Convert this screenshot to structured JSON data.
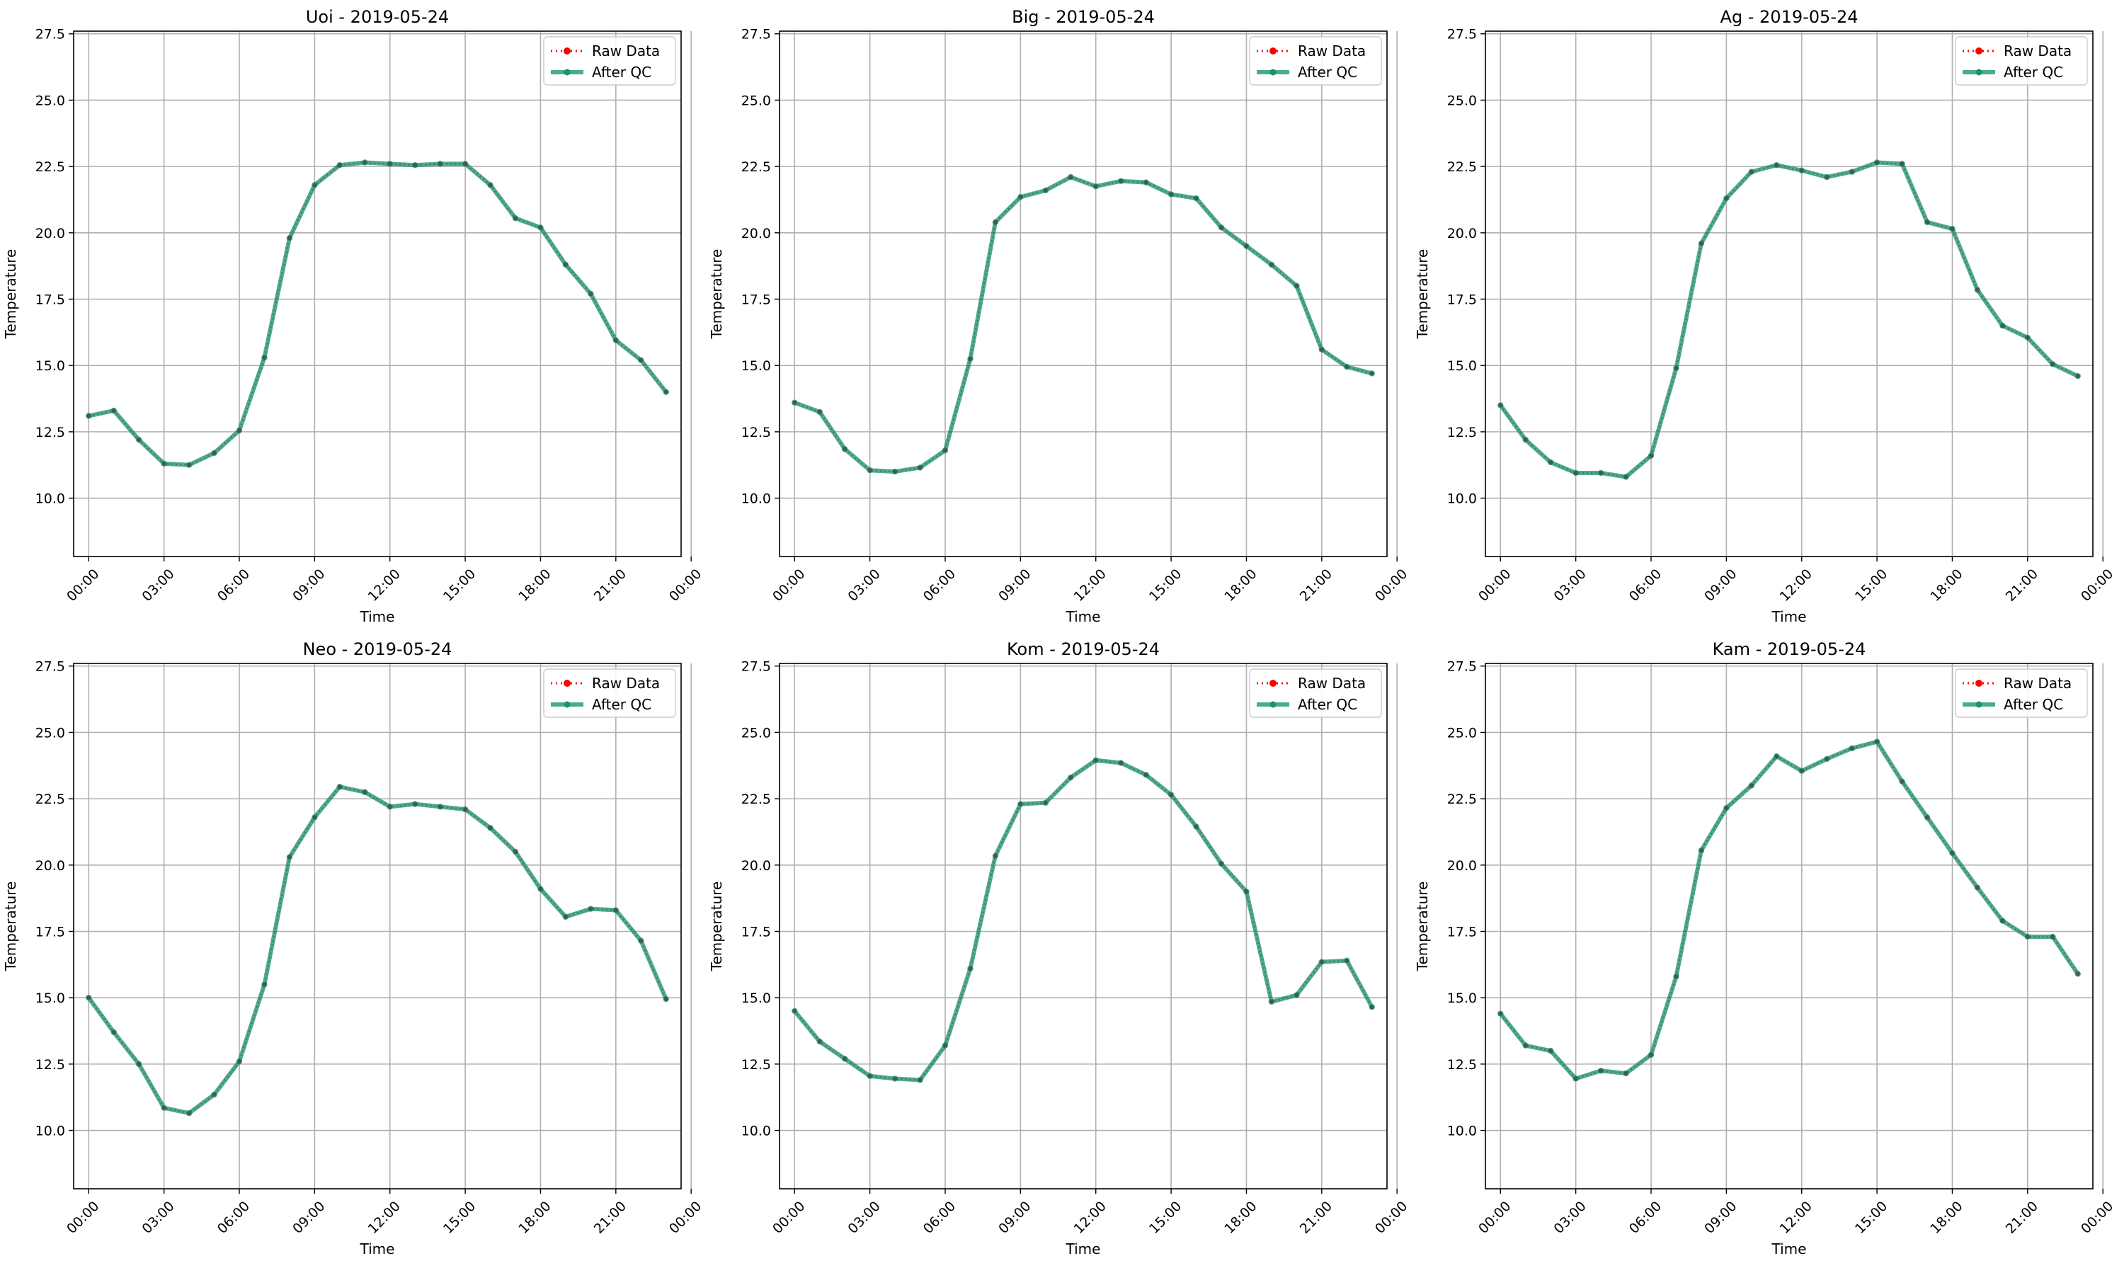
{
  "chart_data": [
    {
      "type": "line",
      "title": "Uoi - 2019-05-24",
      "xlabel": "Time",
      "ylabel": "Temperature",
      "ylim": [
        7.8,
        27.6
      ],
      "xlim": [
        -0.6,
        23.6
      ],
      "yticks": [
        "10.0",
        "12.5",
        "15.0",
        "17.5",
        "20.0",
        "22.5",
        "25.0",
        "27.5"
      ],
      "xticks": [
        "00:00",
        "03:00",
        "06:00",
        "09:00",
        "12:00",
        "15:00",
        "18:00",
        "21:00",
        "00:00"
      ],
      "grid": true,
      "legend": "top-right",
      "x": [
        "00:00",
        "01:00",
        "02:00",
        "03:00",
        "04:00",
        "05:00",
        "06:00",
        "07:00",
        "08:00",
        "09:00",
        "10:00",
        "11:00",
        "12:00",
        "13:00",
        "14:00",
        "15:00",
        "16:00",
        "17:00",
        "18:00",
        "19:00",
        "20:00",
        "21:00",
        "22:00",
        "23:00"
      ],
      "series": [
        {
          "name": "Raw Data",
          "color": "#ff0000",
          "style": "dotted-marker",
          "values": [
            13.1,
            13.3,
            12.2,
            11.3,
            11.25,
            11.7,
            12.55,
            15.3,
            19.8,
            21.8,
            22.55,
            22.65,
            22.6,
            22.55,
            22.6,
            22.6,
            21.8,
            20.55,
            20.2,
            18.8,
            17.7,
            15.95,
            15.2,
            14.0
          ]
        },
        {
          "name": "After QC",
          "color": "#1a936f",
          "style": "solid-marker",
          "values": [
            13.1,
            13.3,
            12.2,
            11.3,
            11.25,
            11.7,
            12.55,
            15.3,
            19.8,
            21.8,
            22.55,
            22.65,
            22.6,
            22.55,
            22.6,
            22.6,
            21.8,
            20.55,
            20.2,
            18.8,
            17.7,
            15.95,
            15.2,
            14.0
          ]
        }
      ]
    },
    {
      "type": "line",
      "title": "Big - 2019-05-24",
      "xlabel": "Time",
      "ylabel": "Temperature",
      "ylim": [
        7.8,
        27.6
      ],
      "xlim": [
        -0.6,
        23.6
      ],
      "yticks": [
        "10.0",
        "12.5",
        "15.0",
        "17.5",
        "20.0",
        "22.5",
        "25.0",
        "27.5"
      ],
      "xticks": [
        "00:00",
        "03:00",
        "06:00",
        "09:00",
        "12:00",
        "15:00",
        "18:00",
        "21:00",
        "00:00"
      ],
      "grid": true,
      "legend": "top-right",
      "x": [
        "00:00",
        "01:00",
        "02:00",
        "03:00",
        "04:00",
        "05:00",
        "06:00",
        "07:00",
        "08:00",
        "09:00",
        "10:00",
        "11:00",
        "12:00",
        "13:00",
        "14:00",
        "15:00",
        "16:00",
        "17:00",
        "18:00",
        "19:00",
        "20:00",
        "21:00",
        "22:00",
        "23:00"
      ],
      "series": [
        {
          "name": "Raw Data",
          "color": "#ff0000",
          "style": "dotted-marker",
          "values": [
            13.6,
            13.25,
            11.85,
            11.05,
            11.0,
            11.15,
            11.8,
            15.25,
            20.4,
            21.35,
            21.6,
            22.1,
            21.75,
            21.95,
            21.9,
            21.45,
            21.3,
            20.2,
            19.5,
            18.8,
            18.0,
            15.6,
            14.95,
            14.7
          ]
        },
        {
          "name": "After QC",
          "color": "#1a936f",
          "style": "solid-marker",
          "values": [
            13.6,
            13.25,
            11.85,
            11.05,
            11.0,
            11.15,
            11.8,
            15.25,
            20.4,
            21.35,
            21.6,
            22.1,
            21.75,
            21.95,
            21.9,
            21.45,
            21.3,
            20.2,
            19.5,
            18.8,
            18.0,
            15.6,
            14.95,
            14.7
          ]
        }
      ]
    },
    {
      "type": "line",
      "title": "Ag - 2019-05-24",
      "xlabel": "Time",
      "ylabel": "Temperature",
      "ylim": [
        7.8,
        27.6
      ],
      "xlim": [
        -0.6,
        23.6
      ],
      "yticks": [
        "10.0",
        "12.5",
        "15.0",
        "17.5",
        "20.0",
        "22.5",
        "25.0",
        "27.5"
      ],
      "xticks": [
        "00:00",
        "03:00",
        "06:00",
        "09:00",
        "12:00",
        "15:00",
        "18:00",
        "21:00",
        "00:00"
      ],
      "grid": true,
      "legend": "top-right",
      "x": [
        "00:00",
        "01:00",
        "02:00",
        "03:00",
        "04:00",
        "05:00",
        "06:00",
        "07:00",
        "08:00",
        "09:00",
        "10:00",
        "11:00",
        "12:00",
        "13:00",
        "14:00",
        "15:00",
        "16:00",
        "17:00",
        "18:00",
        "19:00",
        "20:00",
        "21:00",
        "22:00",
        "23:00"
      ],
      "series": [
        {
          "name": "Raw Data",
          "color": "#ff0000",
          "style": "dotted-marker",
          "values": [
            13.5,
            12.2,
            11.35,
            10.95,
            10.95,
            10.8,
            11.6,
            14.9,
            19.6,
            21.3,
            22.3,
            22.55,
            22.35,
            22.1,
            22.3,
            22.65,
            22.6,
            20.4,
            20.15,
            17.85,
            16.5,
            16.05,
            15.05,
            14.6
          ]
        },
        {
          "name": "After QC",
          "color": "#1a936f",
          "style": "solid-marker",
          "values": [
            13.5,
            12.2,
            11.35,
            10.95,
            10.95,
            10.8,
            11.6,
            14.9,
            19.6,
            21.3,
            22.3,
            22.55,
            22.35,
            22.1,
            22.3,
            22.65,
            22.6,
            20.4,
            20.15,
            17.85,
            16.5,
            16.05,
            15.05,
            14.6
          ]
        }
      ]
    },
    {
      "type": "line",
      "title": "Neo - 2019-05-24",
      "xlabel": "Time",
      "ylabel": "Temperature",
      "ylim": [
        7.8,
        27.6
      ],
      "xlim": [
        -0.6,
        23.6
      ],
      "yticks": [
        "10.0",
        "12.5",
        "15.0",
        "17.5",
        "20.0",
        "22.5",
        "25.0",
        "27.5"
      ],
      "xticks": [
        "00:00",
        "03:00",
        "06:00",
        "09:00",
        "12:00",
        "15:00",
        "18:00",
        "21:00",
        "00:00"
      ],
      "grid": true,
      "legend": "top-right",
      "x": [
        "00:00",
        "01:00",
        "02:00",
        "03:00",
        "04:00",
        "05:00",
        "06:00",
        "07:00",
        "08:00",
        "09:00",
        "10:00",
        "11:00",
        "12:00",
        "13:00",
        "14:00",
        "15:00",
        "16:00",
        "17:00",
        "18:00",
        "19:00",
        "20:00",
        "21:00",
        "22:00",
        "23:00"
      ],
      "series": [
        {
          "name": "Raw Data",
          "color": "#ff0000",
          "style": "dotted-marker",
          "values": [
            15.0,
            13.7,
            12.5,
            10.85,
            10.65,
            11.35,
            12.6,
            15.5,
            20.3,
            21.8,
            22.95,
            22.75,
            22.2,
            22.3,
            22.2,
            22.1,
            21.4,
            20.5,
            19.1,
            18.05,
            18.35,
            18.3,
            17.15,
            14.95
          ]
        },
        {
          "name": "After QC",
          "color": "#1a936f",
          "style": "solid-marker",
          "values": [
            15.0,
            13.7,
            12.5,
            10.85,
            10.65,
            11.35,
            12.6,
            15.5,
            20.3,
            21.8,
            22.95,
            22.75,
            22.2,
            22.3,
            22.2,
            22.1,
            21.4,
            20.5,
            19.1,
            18.05,
            18.35,
            18.3,
            17.15,
            14.95
          ]
        }
      ]
    },
    {
      "type": "line",
      "title": "Kom - 2019-05-24",
      "xlabel": "Time",
      "ylabel": "Temperature",
      "ylim": [
        7.8,
        27.6
      ],
      "xlim": [
        -0.6,
        23.6
      ],
      "yticks": [
        "10.0",
        "12.5",
        "15.0",
        "17.5",
        "20.0",
        "22.5",
        "25.0",
        "27.5"
      ],
      "xticks": [
        "00:00",
        "03:00",
        "06:00",
        "09:00",
        "12:00",
        "15:00",
        "18:00",
        "21:00",
        "00:00"
      ],
      "grid": true,
      "legend": "top-right",
      "x": [
        "00:00",
        "01:00",
        "02:00",
        "03:00",
        "04:00",
        "05:00",
        "06:00",
        "07:00",
        "08:00",
        "09:00",
        "10:00",
        "11:00",
        "12:00",
        "13:00",
        "14:00",
        "15:00",
        "16:00",
        "17:00",
        "18:00",
        "19:00",
        "20:00",
        "21:00",
        "22:00",
        "23:00"
      ],
      "series": [
        {
          "name": "Raw Data",
          "color": "#ff0000",
          "style": "dotted-marker",
          "values": [
            14.5,
            13.35,
            12.7,
            12.05,
            11.95,
            11.9,
            13.2,
            16.1,
            20.35,
            22.3,
            22.35,
            23.3,
            23.95,
            23.85,
            23.4,
            22.65,
            21.45,
            20.05,
            19.0,
            14.85,
            15.1,
            16.35,
            16.4,
            14.65
          ]
        },
        {
          "name": "After QC",
          "color": "#1a936f",
          "style": "solid-marker",
          "values": [
            14.5,
            13.35,
            12.7,
            12.05,
            11.95,
            11.9,
            13.2,
            16.1,
            20.35,
            22.3,
            22.35,
            23.3,
            23.95,
            23.85,
            23.4,
            22.65,
            21.45,
            20.05,
            19.0,
            14.85,
            15.1,
            16.35,
            16.4,
            14.65
          ]
        }
      ]
    },
    {
      "type": "line",
      "title": "Kam - 2019-05-24",
      "xlabel": "Time",
      "ylabel": "Temperature",
      "ylim": [
        7.8,
        27.6
      ],
      "xlim": [
        -0.6,
        23.6
      ],
      "yticks": [
        "10.0",
        "12.5",
        "15.0",
        "17.5",
        "20.0",
        "22.5",
        "25.0",
        "27.5"
      ],
      "xticks": [
        "00:00",
        "03:00",
        "06:00",
        "09:00",
        "12:00",
        "15:00",
        "18:00",
        "21:00",
        "00:00"
      ],
      "grid": true,
      "legend": "top-right",
      "x": [
        "00:00",
        "01:00",
        "02:00",
        "03:00",
        "04:00",
        "05:00",
        "06:00",
        "07:00",
        "08:00",
        "09:00",
        "10:00",
        "11:00",
        "12:00",
        "13:00",
        "14:00",
        "15:00",
        "16:00",
        "17:00",
        "18:00",
        "19:00",
        "20:00",
        "21:00",
        "22:00",
        "23:00"
      ],
      "series": [
        {
          "name": "Raw Data",
          "color": "#ff0000",
          "style": "dotted-marker",
          "values": [
            14.4,
            13.2,
            13.0,
            11.95,
            12.25,
            12.15,
            12.85,
            15.8,
            20.55,
            22.15,
            23.0,
            24.1,
            23.55,
            24.0,
            24.4,
            24.65,
            23.15,
            21.8,
            20.45,
            19.15,
            17.9,
            17.3,
            17.3,
            15.9
          ]
        },
        {
          "name": "After QC",
          "color": "#1a936f",
          "style": "solid-marker",
          "values": [
            14.4,
            13.2,
            13.0,
            11.95,
            12.25,
            12.15,
            12.85,
            15.8,
            20.55,
            22.15,
            23.0,
            24.1,
            23.55,
            24.0,
            24.4,
            24.65,
            23.15,
            21.8,
            20.45,
            19.15,
            17.9,
            17.3,
            17.3,
            15.9
          ]
        }
      ]
    }
  ]
}
